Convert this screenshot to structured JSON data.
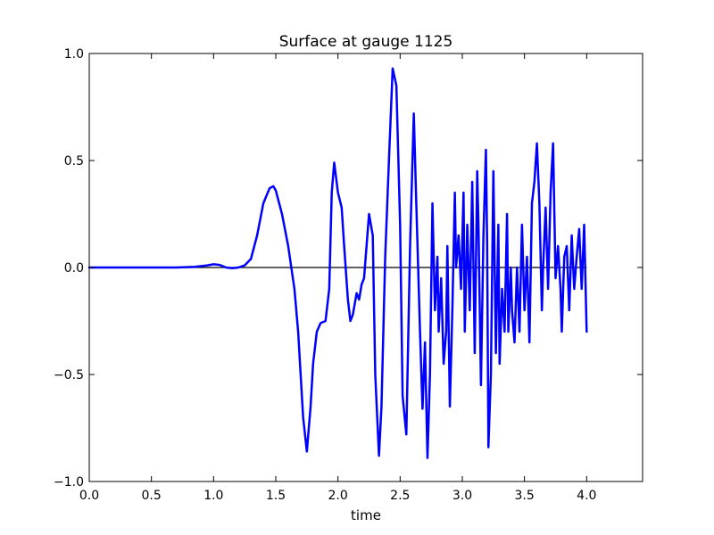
{
  "chart_data": {
    "type": "line",
    "title": "Surface at gauge 1125",
    "xlabel": "time",
    "ylabel": "",
    "xlim": [
      0,
      4.45
    ],
    "ylim": [
      -1.0,
      1.0
    ],
    "grid": false,
    "legend": "none",
    "x_ticks": [
      "0.0",
      "0.5",
      "1.0",
      "1.5",
      "2.0",
      "2.5",
      "3.0",
      "3.5",
      "4.0"
    ],
    "y_ticks": [
      "−1.0",
      "−0.5",
      "0.0",
      "0.5",
      "1.0"
    ],
    "x_tick_values": [
      0,
      0.5,
      1.0,
      1.5,
      2.0,
      2.5,
      3.0,
      3.5,
      4.0
    ],
    "y_tick_values": [
      -1.0,
      -0.5,
      0.0,
      0.5,
      1.0
    ],
    "reference_line": {
      "y": 0.0,
      "x_from": 0.0,
      "x_to": 4.0,
      "color": "#000000"
    },
    "series": [
      {
        "color": "#0000ff",
        "x": [
          0.0,
          0.5,
          0.7,
          0.85,
          0.95,
          1.0,
          1.05,
          1.1,
          1.15,
          1.2,
          1.25,
          1.3,
          1.35,
          1.4,
          1.45,
          1.48,
          1.5,
          1.55,
          1.6,
          1.65,
          1.68,
          1.7,
          1.72,
          1.75,
          1.78,
          1.8,
          1.83,
          1.86,
          1.9,
          1.93,
          1.95,
          1.97,
          2.0,
          2.03,
          2.05,
          2.08,
          2.1,
          2.12,
          2.15,
          2.17,
          2.19,
          2.21,
          2.25,
          2.28,
          2.3,
          2.33,
          2.35,
          2.38,
          2.41,
          2.44,
          2.47,
          2.5,
          2.52,
          2.55,
          2.58,
          2.61,
          2.63,
          2.66,
          2.68,
          2.7,
          2.72,
          2.74,
          2.76,
          2.78,
          2.8,
          2.81,
          2.83,
          2.85,
          2.87,
          2.88,
          2.9,
          2.92,
          2.94,
          2.95,
          2.97,
          2.99,
          3.01,
          3.02,
          3.04,
          3.06,
          3.08,
          3.1,
          3.12,
          3.13,
          3.15,
          3.17,
          3.19,
          3.2,
          3.21,
          3.23,
          3.25,
          3.27,
          3.29,
          3.3,
          3.32,
          3.34,
          3.36,
          3.37,
          3.39,
          3.4,
          3.42,
          3.44,
          3.46,
          3.48,
          3.5,
          3.52,
          3.54,
          3.56,
          3.58,
          3.6,
          3.62,
          3.64,
          3.65,
          3.67,
          3.69,
          3.71,
          3.73,
          3.75,
          3.77,
          3.79,
          3.8,
          3.82,
          3.84,
          3.86,
          3.88,
          3.9,
          3.92,
          3.94,
          3.96,
          3.98,
          4.0
        ],
        "y": [
          0.0,
          0.0,
          0.0,
          0.003,
          0.01,
          0.015,
          0.012,
          0.0,
          -0.003,
          0.0,
          0.01,
          0.04,
          0.15,
          0.3,
          0.37,
          0.38,
          0.36,
          0.25,
          0.1,
          -0.1,
          -0.3,
          -0.5,
          -0.7,
          -0.86,
          -0.65,
          -0.45,
          -0.3,
          -0.26,
          -0.25,
          -0.1,
          0.35,
          0.49,
          0.35,
          0.28,
          0.1,
          -0.15,
          -0.25,
          -0.22,
          -0.12,
          -0.15,
          -0.08,
          -0.05,
          0.25,
          0.15,
          -0.5,
          -0.88,
          -0.65,
          0.05,
          0.5,
          0.93,
          0.85,
          0.2,
          -0.6,
          -0.78,
          0.1,
          0.72,
          0.3,
          -0.3,
          -0.66,
          -0.35,
          -0.89,
          -0.5,
          0.3,
          -0.2,
          0.05,
          -0.3,
          -0.05,
          -0.45,
          -0.3,
          0.1,
          -0.65,
          -0.2,
          0.35,
          0.0,
          0.15,
          -0.1,
          0.35,
          -0.3,
          0.2,
          -0.2,
          0.4,
          -0.4,
          0.45,
          0.2,
          -0.55,
          0.15,
          0.55,
          0.1,
          -0.84,
          -0.5,
          0.45,
          -0.4,
          0.2,
          -0.45,
          -0.1,
          -0.3,
          0.25,
          -0.3,
          0.0,
          -0.2,
          -0.35,
          0.0,
          -0.3,
          0.2,
          -0.2,
          0.05,
          -0.35,
          0.3,
          0.4,
          0.58,
          0.3,
          -0.2,
          0.0,
          0.28,
          -0.1,
          0.35,
          0.58,
          -0.05,
          0.1,
          -0.1,
          -0.3,
          0.05,
          0.1,
          -0.2,
          0.15,
          -0.1,
          0.05,
          0.18,
          -0.1,
          0.2,
          -0.3
        ]
      }
    ]
  }
}
